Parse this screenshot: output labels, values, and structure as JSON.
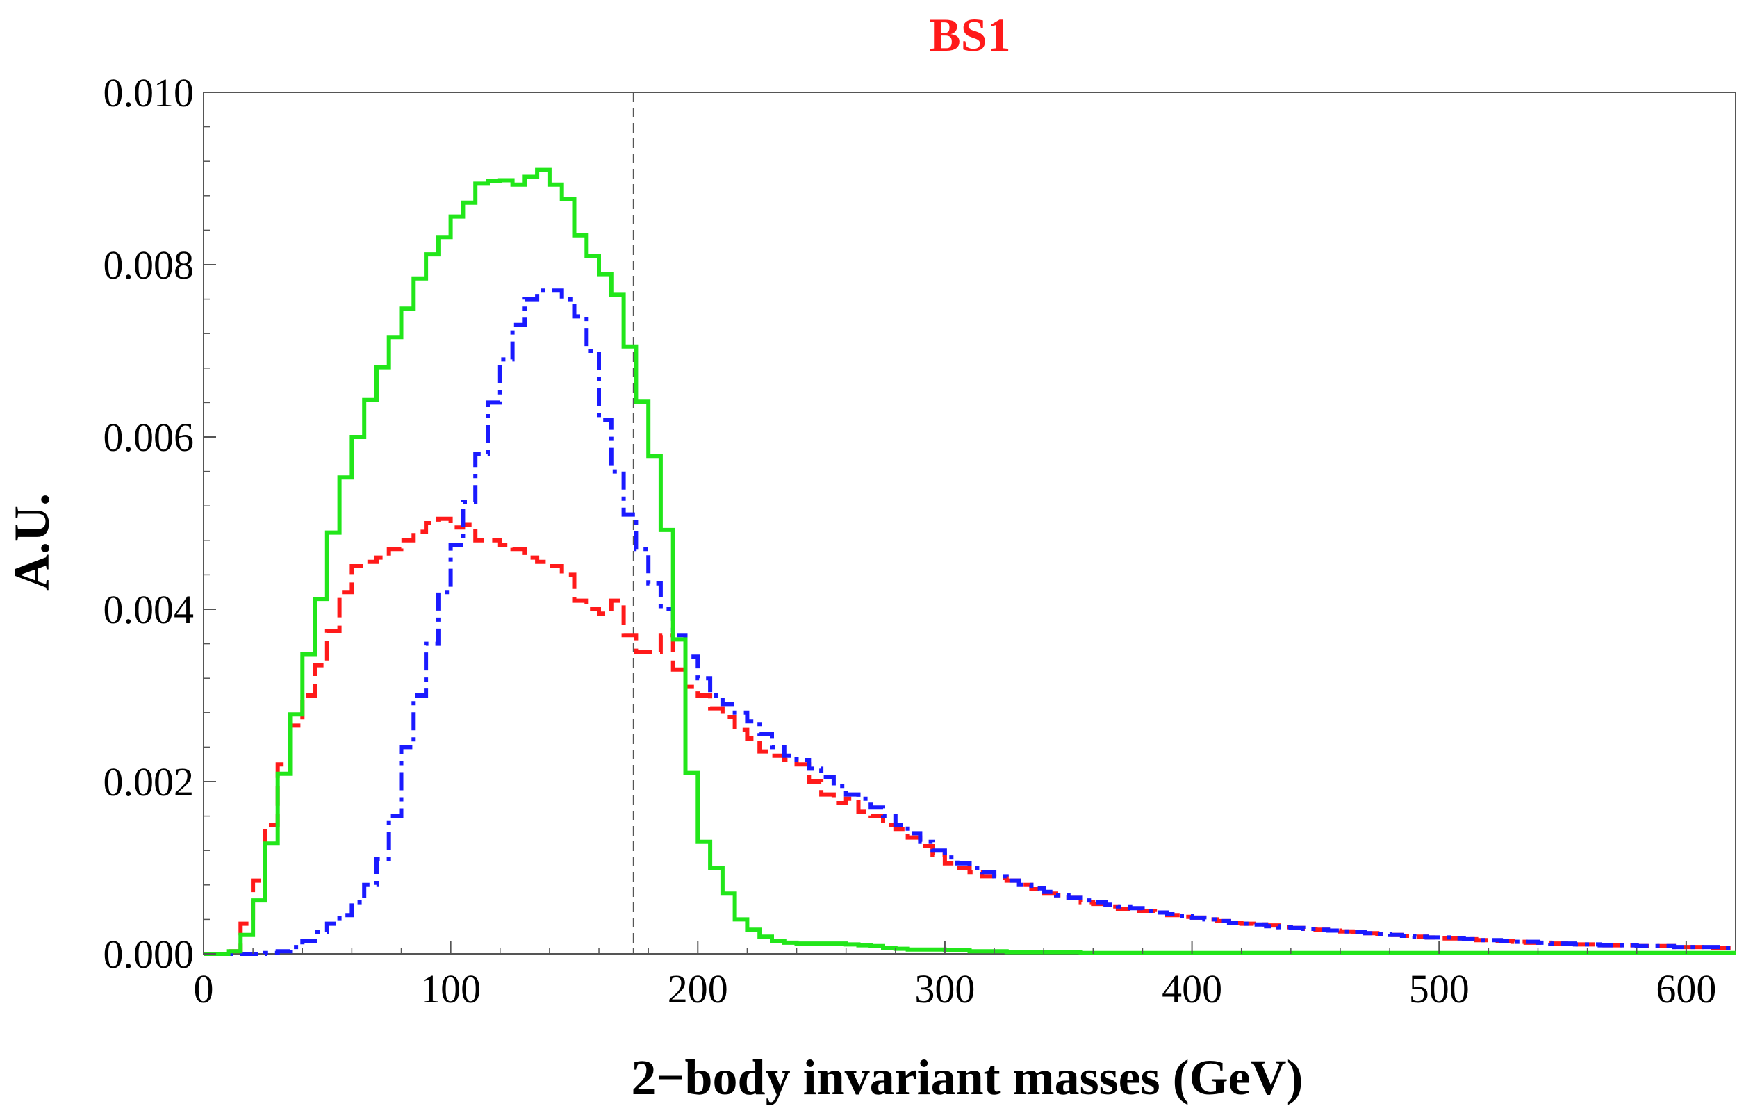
{
  "chart_data": {
    "type": "line",
    "subtype": "step-histogram",
    "title": "BS1",
    "title_color": "#ff1a1a",
    "xlabel": "2−body invariant masses (GeV)",
    "ylabel": "A.U.",
    "xlim": [
      0,
      620
    ],
    "ylim": [
      0,
      0.01
    ],
    "xticks": [
      0,
      100,
      200,
      300,
      400,
      500,
      600
    ],
    "xtick_labels": [
      "0",
      "100",
      "200",
      "300",
      "400",
      "500",
      "600"
    ],
    "yticks": [
      0.0,
      0.002,
      0.004,
      0.006,
      0.008,
      0.01
    ],
    "ytick_labels": [
      "0.000",
      "0.002",
      "0.004",
      "0.006",
      "0.008",
      "0.010"
    ],
    "bin_width": 5,
    "reference_line": {
      "x": 174,
      "style": "dashed",
      "color": "#555555"
    },
    "series": [
      {
        "name": "green-solid",
        "color": "#22e61a",
        "style": "solid",
        "x": [
          0,
          5,
          10,
          15,
          20,
          25,
          30,
          35,
          40,
          45,
          50,
          55,
          60,
          65,
          70,
          75,
          80,
          85,
          90,
          95,
          100,
          105,
          110,
          115,
          120,
          125,
          130,
          135,
          140,
          145,
          150,
          155,
          160,
          165,
          170,
          175,
          180,
          185,
          190,
          195,
          200,
          205,
          210,
          215,
          220,
          225,
          230,
          235,
          240,
          245,
          250,
          255,
          260,
          265,
          270,
          275,
          280,
          285,
          290,
          295,
          300,
          305,
          310,
          315,
          320,
          325,
          330,
          335,
          340,
          345,
          350,
          355,
          360,
          365,
          370,
          375,
          380,
          385,
          390,
          395,
          400,
          405,
          410,
          415,
          420,
          425,
          430,
          435,
          440,
          445,
          450,
          455,
          460,
          465,
          470,
          475,
          480,
          485,
          490,
          495,
          500,
          505,
          510,
          515,
          520,
          525,
          530,
          535,
          540,
          545,
          550,
          555,
          560,
          565,
          570,
          575,
          580,
          585,
          590,
          595,
          600,
          605,
          610,
          615
        ],
        "values": [
          0,
          0,
          3e-05,
          0.00022,
          0.00062,
          0.00128,
          0.00209,
          0.00278,
          0.00348,
          0.00412,
          0.00489,
          0.00553,
          0.006,
          0.00643,
          0.00681,
          0.00716,
          0.00749,
          0.00784,
          0.00812,
          0.00832,
          0.00856,
          0.00872,
          0.00894,
          0.00897,
          0.00898,
          0.00893,
          0.00902,
          0.0091,
          0.00893,
          0.00876,
          0.00834,
          0.0081,
          0.00789,
          0.00765,
          0.00705,
          0.00641,
          0.00578,
          0.00492,
          0.00365,
          0.0021,
          0.0013,
          0.001,
          0.0007,
          0.0004,
          0.00028,
          0.0002,
          0.00015,
          0.00013,
          0.00012,
          0.00012,
          0.00012,
          0.00012,
          0.00011,
          0.0001,
          9e-05,
          7e-05,
          6e-05,
          5e-05,
          5e-05,
          5e-05,
          4e-05,
          4e-05,
          3e-05,
          3e-05,
          3e-05,
          2e-05,
          2e-05,
          2e-05,
          2e-05,
          2e-05,
          2e-05,
          1e-05,
          1e-05,
          1e-05,
          1e-05,
          1e-05,
          1e-05,
          1e-05,
          1e-05,
          1e-05,
          1e-05,
          1e-05,
          1e-05,
          1e-05,
          1e-05,
          1e-05,
          1e-05,
          1e-05,
          1e-05,
          1e-05,
          1e-05,
          1e-05,
          1e-05,
          1e-05,
          1e-05,
          1e-05,
          1e-05,
          1e-05,
          1e-05,
          1e-05,
          1e-05,
          1e-05,
          1e-05,
          1e-05,
          1e-05,
          1e-05,
          1e-05,
          1e-05,
          1e-05,
          1e-05,
          1e-05,
          1e-05,
          1e-05,
          1e-05,
          1e-05,
          1e-05,
          1e-05,
          1e-05,
          1e-05,
          1e-05,
          1e-05,
          1e-05,
          1e-05,
          1e-05
        ]
      },
      {
        "name": "red-dashed",
        "color": "#ff1a1a",
        "style": "dashed",
        "x": [
          0,
          5,
          10,
          15,
          20,
          25,
          30,
          35,
          40,
          45,
          50,
          55,
          60,
          65,
          70,
          75,
          80,
          85,
          90,
          95,
          100,
          105,
          110,
          115,
          120,
          125,
          130,
          135,
          140,
          145,
          150,
          155,
          160,
          165,
          170,
          175,
          180,
          185,
          190,
          195,
          200,
          205,
          210,
          215,
          220,
          225,
          230,
          235,
          240,
          245,
          250,
          255,
          260,
          265,
          270,
          275,
          280,
          285,
          290,
          295,
          300,
          305,
          310,
          315,
          320,
          325,
          330,
          335,
          340,
          345,
          350,
          355,
          360,
          365,
          370,
          375,
          380,
          385,
          390,
          395,
          400,
          405,
          410,
          415,
          420,
          425,
          430,
          435,
          440,
          445,
          450,
          455,
          460,
          465,
          470,
          475,
          480,
          485,
          490,
          495,
          500,
          505,
          510,
          515,
          520,
          525,
          530,
          535,
          540,
          545,
          550,
          555,
          560,
          565,
          570,
          575,
          580,
          585,
          590,
          595,
          600,
          605,
          610,
          615
        ],
        "values": [
          0,
          0,
          3e-05,
          0.00035,
          0.00085,
          0.0015,
          0.0022,
          0.00265,
          0.003,
          0.00335,
          0.00375,
          0.0042,
          0.0045,
          0.00455,
          0.0046,
          0.0047,
          0.0048,
          0.0049,
          0.005,
          0.00505,
          0.00495,
          0.00498,
          0.0048,
          0.0048,
          0.00475,
          0.0047,
          0.0046,
          0.00455,
          0.0045,
          0.0044,
          0.0041,
          0.004,
          0.00395,
          0.0041,
          0.0037,
          0.0035,
          0.0035,
          0.0037,
          0.0033,
          0.0031,
          0.003,
          0.00285,
          0.00275,
          0.0026,
          0.0025,
          0.00235,
          0.0023,
          0.00225,
          0.0022,
          0.002,
          0.00185,
          0.00175,
          0.0018,
          0.00165,
          0.0016,
          0.0015,
          0.00145,
          0.00135,
          0.00125,
          0.00115,
          0.00105,
          0.001,
          0.00095,
          0.0009,
          0.00088,
          0.00085,
          0.0008,
          0.00075,
          0.0007,
          0.00068,
          0.00065,
          0.0006,
          0.00058,
          0.00055,
          0.00052,
          0.0005,
          0.0005,
          0.00048,
          0.00045,
          0.00043,
          0.00042,
          0.0004,
          0.00038,
          0.00036,
          0.00035,
          0.00034,
          0.00033,
          0.00031,
          0.0003,
          0.00029,
          0.00028,
          0.00027,
          0.00026,
          0.00025,
          0.00024,
          0.00023,
          0.00022,
          0.00021,
          0.0002,
          0.00019,
          0.00018,
          0.00018,
          0.00017,
          0.00016,
          0.00015,
          0.00015,
          0.00014,
          0.00013,
          0.00013,
          0.00012,
          0.00012,
          0.00011,
          0.00011,
          0.0001,
          0.0001,
          0.0001,
          9e-05,
          9e-05,
          9e-05,
          8e-05,
          8e-05,
          8e-05,
          7e-05,
          7e-05
        ]
      },
      {
        "name": "blue-dashdot",
        "color": "#1a1aff",
        "style": "dashdot",
        "x": [
          0,
          5,
          10,
          15,
          20,
          25,
          30,
          35,
          40,
          45,
          50,
          55,
          60,
          65,
          70,
          75,
          80,
          85,
          90,
          95,
          100,
          105,
          110,
          115,
          120,
          125,
          130,
          135,
          140,
          145,
          150,
          155,
          160,
          165,
          170,
          175,
          180,
          185,
          190,
          195,
          200,
          205,
          210,
          215,
          220,
          225,
          230,
          235,
          240,
          245,
          250,
          255,
          260,
          265,
          270,
          275,
          280,
          285,
          290,
          295,
          300,
          305,
          310,
          315,
          320,
          325,
          330,
          335,
          340,
          345,
          350,
          355,
          360,
          365,
          370,
          375,
          380,
          385,
          390,
          395,
          400,
          405,
          410,
          415,
          420,
          425,
          430,
          435,
          440,
          445,
          450,
          455,
          460,
          465,
          470,
          475,
          480,
          485,
          490,
          495,
          500,
          505,
          510,
          515,
          520,
          525,
          530,
          535,
          540,
          545,
          550,
          555,
          560,
          565,
          570,
          575,
          580,
          585,
          590,
          595,
          600,
          605,
          610,
          615
        ],
        "values": [
          0,
          0,
          0,
          0,
          0,
          1e-05,
          3e-05,
          8e-05,
          0.00015,
          0.00025,
          0.00035,
          0.00045,
          0.0006,
          0.0008,
          0.0011,
          0.0016,
          0.0024,
          0.003,
          0.0036,
          0.0042,
          0.00475,
          0.00525,
          0.0058,
          0.0064,
          0.0069,
          0.0073,
          0.0076,
          0.0077,
          0.0077,
          0.0076,
          0.0074,
          0.007,
          0.0062,
          0.0056,
          0.0051,
          0.0047,
          0.0043,
          0.004,
          0.0037,
          0.00345,
          0.0032,
          0.003,
          0.0029,
          0.0028,
          0.0027,
          0.00255,
          0.0024,
          0.0023,
          0.00225,
          0.00215,
          0.00205,
          0.00195,
          0.00185,
          0.0018,
          0.0017,
          0.0016,
          0.0015,
          0.0014,
          0.0013,
          0.0012,
          0.00112,
          0.00105,
          0.001,
          0.00095,
          0.0009,
          0.00085,
          0.0008,
          0.00076,
          0.00072,
          0.00068,
          0.00065,
          0.00062,
          0.0006,
          0.00057,
          0.00055,
          0.00053,
          0.0005,
          0.00048,
          0.00046,
          0.00044,
          0.00042,
          0.0004,
          0.00038,
          0.00036,
          0.00035,
          0.00034,
          0.00032,
          0.00031,
          0.0003,
          0.00029,
          0.00028,
          0.00027,
          0.00026,
          0.00025,
          0.00024,
          0.00023,
          0.00022,
          0.00021,
          0.0002,
          0.00019,
          0.00019,
          0.00018,
          0.00017,
          0.00016,
          0.00016,
          0.00015,
          0.00014,
          0.00014,
          0.00013,
          0.00012,
          0.00012,
          0.00011,
          0.00011,
          0.0001,
          0.0001,
          0.0001,
          9e-05,
          9e-05,
          9e-05,
          8e-05,
          8e-05,
          8e-05,
          8e-05,
          7e-05
        ]
      }
    ]
  }
}
